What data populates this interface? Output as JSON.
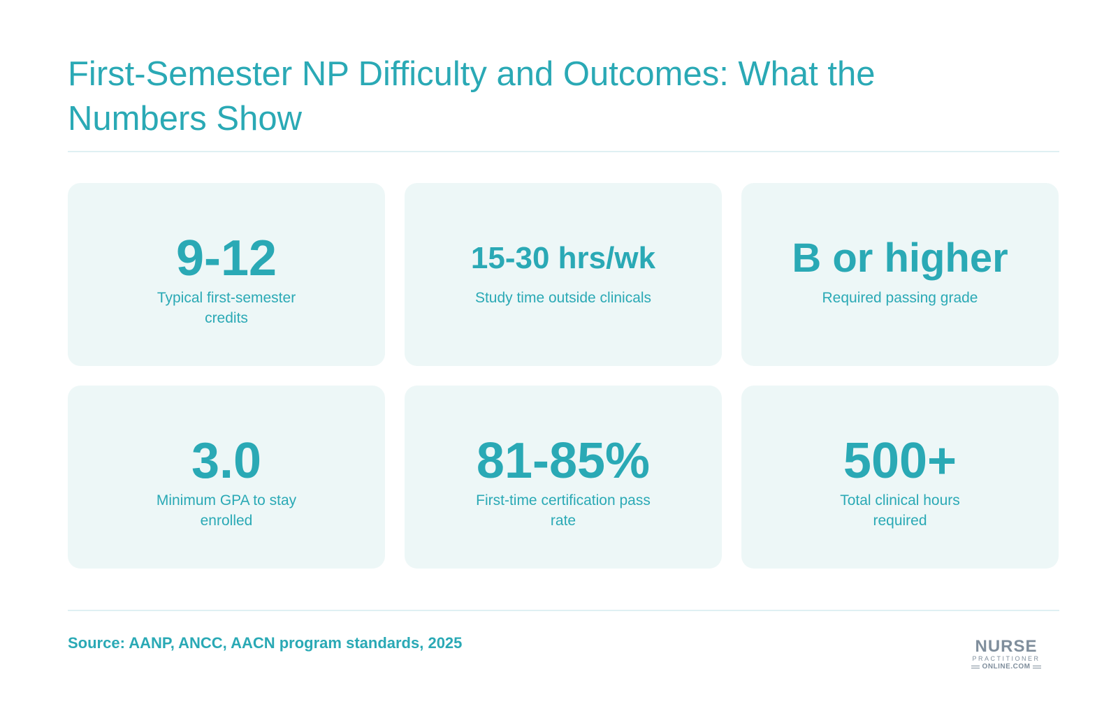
{
  "header": {
    "title": "First-Semester NP Difficulty and Outcomes: What the Numbers Show"
  },
  "stats": [
    {
      "value": "9-12",
      "label": "Typical first-semester credits"
    },
    {
      "value": "15-30 hrs/wk",
      "label": "Study time outside clinicals"
    },
    {
      "value": "B or higher",
      "label": "Required passing grade"
    },
    {
      "value": "3.0",
      "label": "Minimum GPA to stay enrolled"
    },
    {
      "value": "81-85%",
      "label": "First-time certification pass rate"
    },
    {
      "value": "500+",
      "label": "Total clinical hours required"
    }
  ],
  "footer": {
    "source": "Source: AANP, ANCC, AACN program standards, 2025",
    "logo": {
      "line1": "NURSE",
      "line2": "PRACTITIONER",
      "line3": "ONLINE.COM"
    }
  },
  "colors": {
    "accent": "#2aa9b5",
    "card_background": "#edf7f7",
    "divider": "#dff0f3",
    "logo_gray": "#7f8e9c"
  }
}
